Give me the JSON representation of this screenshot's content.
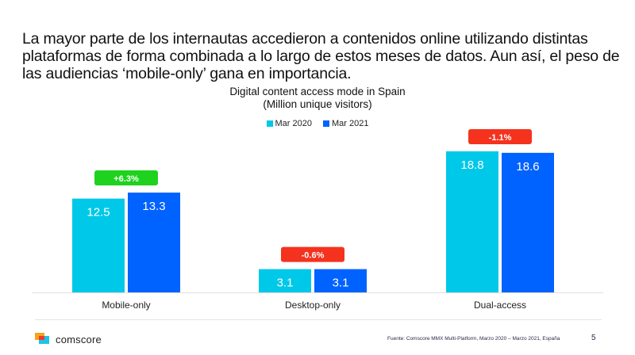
{
  "headline": "La mayor parte de los internautas accedieron a contenidos online utilizando distintas plataformas de forma combinada a lo largo de estos meses de datos. Aun así, el peso de las audiencias ‘mobile-only’ gana en importancia.",
  "chart_data": {
    "type": "bar",
    "title": "Digital content access mode in Spain",
    "subtitle": "(Million unique visitors)",
    "xlabel": "",
    "ylabel": "",
    "ylim": [
      0,
      20
    ],
    "grid": false,
    "legend_position": "top-center",
    "categories": [
      "Mobile-only",
      "Desktop-only",
      "Dual-access"
    ],
    "series": [
      {
        "name": "Mar 2020",
        "color": "#00c8e8",
        "values": [
          12.5,
          3.1,
          18.8
        ]
      },
      {
        "name": "Mar 2021",
        "color": "#0062ff",
        "values": [
          13.3,
          3.1,
          18.6
        ]
      }
    ],
    "value_labels": [
      [
        "12.5",
        "3.1",
        "18.8"
      ],
      [
        "13.3",
        "3.1",
        "18.6"
      ]
    ],
    "change_badges": [
      {
        "label": "+6.3%",
        "color": "#1ed21e"
      },
      {
        "label": "-0.6%",
        "color": "#f5321e"
      },
      {
        "label": "-1.1%",
        "color": "#f5321e"
      }
    ]
  },
  "footer": {
    "brand": "comscore",
    "source": "Fuente: Comscore MMX Multi-Platform, Marzo 2020 – Marzo 2021, España",
    "page_number": "5"
  }
}
